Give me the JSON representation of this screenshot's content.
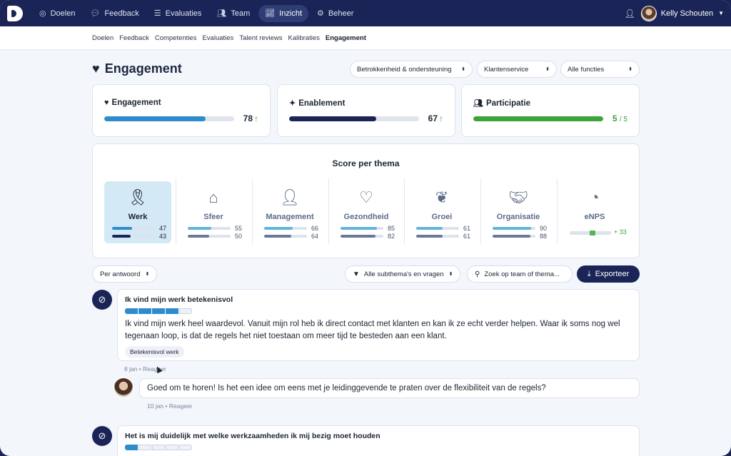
{
  "nav": {
    "items": [
      {
        "label": "Doelen",
        "icon": "target-icon"
      },
      {
        "label": "Feedback",
        "icon": "chat-icon"
      },
      {
        "label": "Evaluaties",
        "icon": "list-icon"
      },
      {
        "label": "Team",
        "icon": "users-icon"
      },
      {
        "label": "Inzicht",
        "icon": "chart-icon"
      },
      {
        "label": "Beheer",
        "icon": "gear-icon"
      }
    ],
    "active": "Inzicht",
    "user_name": "Kelly Schouten"
  },
  "subnav": [
    "Doelen",
    "Feedback",
    "Competenties",
    "Evaluaties",
    "Talent reviews",
    "Kalibraties",
    "Engagement"
  ],
  "page": {
    "title": "Engagement",
    "filters": [
      "Betrokkenheid & ondersteuning",
      "Klantenservice",
      "Alle functies"
    ]
  },
  "kpis": [
    {
      "label": "Engagement",
      "value": "78",
      "fraction": 0.78,
      "color": "#2f8ccc",
      "icon": "heart-pulse-icon"
    },
    {
      "label": "Enablement",
      "value": "67",
      "fraction": 0.67,
      "color": "#1a2456",
      "icon": "sparkles-icon"
    },
    {
      "label": "Participatie",
      "value": "5",
      "denominator": "/ 5",
      "fraction": 1.0,
      "color": "#3aa33a",
      "icon": "users-icon"
    }
  ],
  "themes": {
    "title": "Score per thema",
    "items": [
      {
        "name": "Werk",
        "icon": "ribbon-icon",
        "v1": "47",
        "v2": "43"
      },
      {
        "name": "Sfeer",
        "icon": "house-heart-icon",
        "v1": "55",
        "v2": "50"
      },
      {
        "name": "Management",
        "icon": "manager-icon",
        "v1": "66",
        "v2": "64"
      },
      {
        "name": "Gezondheid",
        "icon": "heartbeat-icon",
        "v1": "85",
        "v2": "82"
      },
      {
        "name": "Groei",
        "icon": "seedling-icon",
        "v1": "61",
        "v2": "61"
      },
      {
        "name": "Organisatie",
        "icon": "handshake-icon",
        "v1": "90",
        "v2": "88"
      },
      {
        "name": "eNPS",
        "icon": "gauge-icon",
        "enps": "+ 33"
      }
    ]
  },
  "toolbar": {
    "sort": "Per antwoord",
    "subthemes": "Alle subthema's en vragen",
    "search_placeholder": "Zoek op team of thema...",
    "export": "Exporteer"
  },
  "comments": [
    {
      "question": "Ik vind mijn werk betekenisvol",
      "score_segments": 5,
      "score_filled": 4,
      "text": "Ik vind mijn werk heel waardevol. Vanuit mijn rol heb ik direct contact met klanten en kan ik ze echt verder helpen. Waar ik soms nog wel tegenaan loop, is dat de regels het niet toestaan om meer tijd te besteden aan een klant.",
      "tag": "Betekenisvol werk",
      "date": "8 jan",
      "reply_label": "Reageer",
      "reply": {
        "text": "Goed om te horen! Is het een idee om eens met je leidinggevende te praten over de flexibiliteit van de regels?",
        "date": "10 jan",
        "reply_label": "Reageer"
      }
    },
    {
      "question": "Het is mij duidelijk met welke werkzaamheden ik mij bezig moet houden",
      "score_segments": 5,
      "score_filled": 1
    }
  ]
}
